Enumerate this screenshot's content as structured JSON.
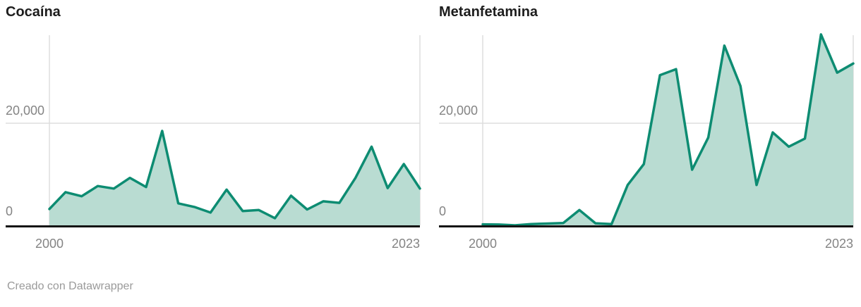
{
  "page": {
    "footer": "Creado con Datawrapper"
  },
  "colors": {
    "line": "#0d8c72",
    "fill": "#b9dcd2",
    "axis": "#141414",
    "grid": "#dddddd",
    "tick_text": "#848484",
    "title_text": "#1d1d1d"
  },
  "chart_data": [
    {
      "type": "area",
      "title": "Cocaína",
      "x": [
        2000,
        2001,
        2002,
        2003,
        2004,
        2005,
        2006,
        2007,
        2008,
        2009,
        2010,
        2011,
        2012,
        2013,
        2014,
        2015,
        2016,
        2017,
        2018,
        2019,
        2020,
        2021,
        2022,
        2023
      ],
      "values": [
        3200,
        6500,
        5700,
        7700,
        7200,
        9300,
        7500,
        18500,
        4300,
        3600,
        2500,
        7000,
        2800,
        3000,
        1400,
        5800,
        3100,
        4700,
        4400,
        9300,
        15400,
        7300,
        12000,
        7200
      ],
      "xlabel": "",
      "ylabel": "",
      "x_tick_labels": [
        "2000",
        "2023"
      ],
      "y_tick_labels": [
        "20,000",
        "0"
      ],
      "y_ticks": [
        20000,
        0
      ],
      "ylim": [
        0,
        37300
      ],
      "grid": "horizontal line at 20,000; vertical lines at 2000 and 2023",
      "legend": "none"
    },
    {
      "type": "area",
      "title": "Metanfetamina",
      "x": [
        2000,
        2001,
        2002,
        2003,
        2004,
        2005,
        2006,
        2007,
        2008,
        2009,
        2010,
        2011,
        2012,
        2013,
        2014,
        2015,
        2016,
        2017,
        2018,
        2019,
        2020,
        2021,
        2022,
        2023
      ],
      "values": [
        200,
        150,
        0,
        250,
        350,
        450,
        3000,
        400,
        250,
        7900,
        12000,
        29400,
        30600,
        10900,
        17200,
        35200,
        27300,
        7900,
        18200,
        15400,
        17000,
        37400,
        29900,
        31700
      ],
      "xlabel": "",
      "ylabel": "",
      "x_tick_labels": [
        "2000",
        "2023"
      ],
      "y_tick_labels": [
        "20,000",
        "0"
      ],
      "y_ticks": [
        20000,
        0
      ],
      "ylim": [
        0,
        37300
      ],
      "grid": "horizontal line at 20,000; vertical lines at 2000 and 2023",
      "legend": "none"
    }
  ]
}
